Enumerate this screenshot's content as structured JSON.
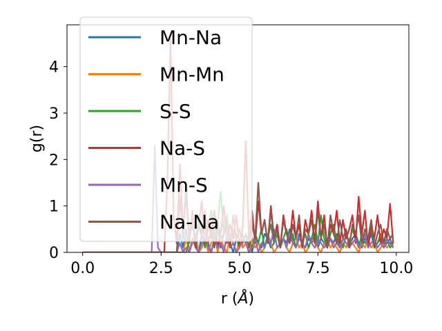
{
  "chart_data": {
    "type": "line",
    "title": "",
    "xlabel": "r (",
    "xlabel_unit": "Å",
    "xlabel_close": ")",
    "ylabel": "g(r)",
    "xlim": [
      -0.5,
      10.4
    ],
    "ylim": [
      0,
      4.9
    ],
    "xticks": [
      0.0,
      2.5,
      5.0,
      7.5,
      10.0
    ],
    "xtick_labels": [
      "0.0",
      "2.5",
      "5.0",
      "7.5",
      "10.0"
    ],
    "yticks": [
      0,
      1,
      2,
      3,
      4
    ],
    "ytick_labels": [
      "0",
      "1",
      "2",
      "3",
      "4"
    ],
    "grid": false,
    "legend_position": "upper-left",
    "series": [
      {
        "name": "Mn-Na",
        "color": "#1f77b4",
        "x": [
          0.0,
          3.0,
          3.1,
          3.2,
          3.3,
          3.4,
          3.5,
          3.6,
          3.7,
          3.8,
          3.9,
          4.0,
          4.1,
          4.2,
          4.3,
          4.4,
          4.5,
          4.6,
          4.7,
          4.8,
          4.9,
          5.0,
          5.1,
          5.2,
          5.3,
          5.4,
          5.5,
          5.6,
          5.7,
          5.8,
          5.9,
          6.0,
          6.1,
          6.2,
          6.3,
          6.4,
          6.5,
          6.6,
          6.7,
          6.8,
          6.9,
          7.0,
          7.1,
          7.2,
          7.3,
          7.4,
          7.5,
          7.6,
          7.7,
          7.8,
          7.9,
          8.0,
          8.1,
          8.2,
          8.3,
          8.4,
          8.5,
          8.6,
          8.7,
          8.8,
          8.9,
          9.0,
          9.1,
          9.2,
          9.3,
          9.4,
          9.5,
          9.6,
          9.7,
          9.8,
          9.9
        ],
        "values": [
          0,
          0,
          0.4,
          0.1,
          0.5,
          0,
          0.3,
          0.2,
          0,
          0.4,
          0.6,
          0.2,
          0,
          0.3,
          0.5,
          0.1,
          0.4,
          0.7,
          0.2,
          0,
          0.3,
          0.5,
          0.1,
          0.2,
          0.4,
          0,
          0.3,
          0.2,
          0.1,
          0.4,
          0.3,
          0.1,
          0.2,
          0.4,
          0.1,
          0.3,
          0.2,
          0.5,
          0.3,
          0.1,
          0.4,
          0.2,
          0.1,
          0.3,
          0.2,
          0.4,
          0.1,
          0.3,
          0.2,
          0.1,
          0.3,
          0.2,
          0.4,
          0.1,
          0.3,
          0.2,
          0.1,
          0.3,
          0.4,
          0.2,
          0.1,
          0.3,
          0.2,
          0.4,
          0.1,
          0.2,
          0.3,
          0.1,
          0.2,
          0.3,
          0.1
        ]
      },
      {
        "name": "Mn-Mn",
        "color": "#ff7f0e",
        "x": [
          0.0,
          3.2,
          3.3,
          3.4,
          3.5,
          3.6,
          3.7,
          3.8,
          3.9,
          4.0,
          4.1,
          4.2,
          4.3,
          4.4,
          4.5,
          4.6,
          4.7,
          4.8,
          4.9,
          5.0,
          5.1,
          5.2,
          5.3,
          5.4,
          5.5,
          5.6,
          5.7,
          5.8,
          5.9,
          6.0,
          6.1,
          6.2,
          6.3,
          6.4,
          6.5,
          6.6,
          6.7,
          6.8,
          6.9,
          7.0,
          7.1,
          7.2,
          7.3,
          7.4,
          7.5,
          7.6,
          7.7,
          7.8,
          7.9,
          8.0,
          8.1,
          8.2,
          8.3,
          8.4,
          8.5,
          8.6,
          8.7,
          8.8,
          8.9,
          9.0,
          9.1,
          9.2,
          9.3,
          9.4,
          9.5,
          9.6,
          9.7,
          9.8,
          9.9
        ],
        "values": [
          0,
          0,
          0.3,
          0,
          0.2,
          0.4,
          0,
          0.1,
          0.3,
          0,
          0.2,
          0.5,
          0,
          0.3,
          0.1,
          0,
          0.4,
          0.2,
          0,
          0.3,
          0.1,
          0.2,
          0,
          0.3,
          0.1,
          0.2,
          0,
          0.1,
          0.3,
          0.2,
          0,
          0.1,
          0.2,
          0.3,
          0.1,
          0,
          0.2,
          0.3,
          0.1,
          0.2,
          0,
          0.1,
          0.3,
          0.2,
          0.1,
          0,
          0.2,
          0.3,
          0.1,
          0.2,
          0.1,
          0,
          0.2,
          0.1,
          0.3,
          0.2,
          0.1,
          0,
          0.2,
          0.1,
          0.3,
          0.1,
          0.2,
          0,
          0.1,
          0.2,
          0.1,
          0.2,
          0.1
        ]
      },
      {
        "name": "S-S",
        "color": "#2ca02c",
        "x": [
          0.0,
          3.3,
          3.4,
          3.5,
          3.6,
          3.7,
          3.8,
          3.9,
          4.0,
          4.1,
          4.2,
          4.3,
          4.4,
          4.5,
          4.6,
          4.7,
          4.8,
          4.9,
          5.0,
          5.1,
          5.2,
          5.3,
          5.4,
          5.5,
          5.6,
          5.7,
          5.8,
          5.9,
          6.0,
          6.1,
          6.2,
          6.3,
          6.4,
          6.5,
          6.6,
          6.7,
          6.8,
          6.9,
          7.0,
          7.1,
          7.2,
          7.3,
          7.4,
          7.5,
          7.6,
          7.7,
          7.8,
          7.9,
          8.0,
          8.1,
          8.2,
          8.3,
          8.4,
          8.5,
          8.6,
          8.7,
          8.8,
          8.9,
          9.0,
          9.1,
          9.2,
          9.3,
          9.4,
          9.5,
          9.6,
          9.7,
          9.8,
          9.9
        ],
        "values": [
          0,
          0,
          0.3,
          0.6,
          0.2,
          0.8,
          0.4,
          0.1,
          0.5,
          0.9,
          0.3,
          0.6,
          1.3,
          0.4,
          0.8,
          0.2,
          0.5,
          0.3,
          0.1,
          0.4,
          0.2,
          0.3,
          0.1,
          0.4,
          0.2,
          0.5,
          0.1,
          0.3,
          0.6,
          0.2,
          0.4,
          0.1,
          0.3,
          0.5,
          0.2,
          0.4,
          0.1,
          0.3,
          0.2,
          0.4,
          0.1,
          0.3,
          0.6,
          0.2,
          0.8,
          0.3,
          0.1,
          0.4,
          0.6,
          0.2,
          0.3,
          0.1,
          0.4,
          0.2,
          0.5,
          0.3,
          0.1,
          0.4,
          0.2,
          0.3,
          0.5,
          0.1,
          0.2,
          0.4,
          0.2,
          0.3,
          0.1,
          0.2
        ]
      },
      {
        "name": "Na-S",
        "color": "#d62728",
        "x": [
          0.0,
          2.6,
          2.7,
          2.8,
          2.9,
          3.0,
          3.1,
          3.2,
          3.3,
          3.4,
          3.5,
          3.6,
          3.7,
          3.8,
          3.9,
          4.0,
          4.1,
          4.2,
          4.3,
          4.4,
          4.5,
          4.6,
          4.7,
          4.8,
          4.9,
          5.0,
          5.1,
          5.2,
          5.3,
          5.4,
          5.5,
          5.6,
          5.7,
          5.8,
          5.9,
          6.0,
          6.1,
          6.2,
          6.3,
          6.4,
          6.5,
          6.6,
          6.7,
          6.8,
          6.9,
          7.0,
          7.1,
          7.2,
          7.3,
          7.4,
          7.5,
          7.6,
          7.7,
          7.8,
          7.9,
          8.0,
          8.1,
          8.2,
          8.3,
          8.4,
          8.5,
          8.6,
          8.7,
          8.8,
          8.9,
          9.0,
          9.1,
          9.2,
          9.3,
          9.4,
          9.5,
          9.6,
          9.7,
          9.8,
          9.9
        ],
        "values": [
          0,
          0,
          1.5,
          4.6,
          0.8,
          0.2,
          1.9,
          0.5,
          1.2,
          0.3,
          0.9,
          0.1,
          0.6,
          1.1,
          0.2,
          0.7,
          0.3,
          0.9,
          0.1,
          0.4,
          1.0,
          0.2,
          0.6,
          0.3,
          0.8,
          0.1,
          0.5,
          2.4,
          0.3,
          0.9,
          0.2,
          1.1,
          0.4,
          0.7,
          0.2,
          1.0,
          0.3,
          0.6,
          0.1,
          0.8,
          0.4,
          0.2,
          0.9,
          0.3,
          0.6,
          0.1,
          0.7,
          0.4,
          0.9,
          0.2,
          1.1,
          0.3,
          0.8,
          0.1,
          0.6,
          0.4,
          0.9,
          0.2,
          0.7,
          0.3,
          0.5,
          0.8,
          0.2,
          1.2,
          0.4,
          0.9,
          0.1,
          0.6,
          0.3,
          0.8,
          0.2,
          0.5,
          0.3,
          1.05,
          0.2
        ]
      },
      {
        "name": "Mn-S",
        "color": "#9467bd",
        "x": [
          0.0,
          2.2,
          2.3,
          2.4,
          2.5,
          2.6,
          2.7,
          2.8,
          2.9,
          3.0,
          3.1,
          3.2,
          3.3,
          3.4,
          3.5,
          3.6,
          3.7,
          3.8,
          3.9,
          4.0,
          4.1,
          4.2,
          4.3,
          4.4,
          4.5,
          4.6,
          4.7,
          4.8,
          4.9,
          5.0,
          5.1,
          5.2,
          5.3,
          5.4,
          5.5,
          5.6,
          5.7,
          5.8,
          5.9,
          6.0,
          6.1,
          6.2,
          6.3,
          6.4,
          6.5,
          6.6,
          6.7,
          6.8,
          6.9,
          7.0,
          7.1,
          7.2,
          7.3,
          7.4,
          7.5,
          7.6,
          7.7,
          7.8,
          7.9,
          8.0,
          8.1,
          8.2,
          8.3,
          8.4,
          8.5,
          8.6,
          8.7,
          8.8,
          8.9,
          9.0,
          9.1,
          9.2,
          9.3,
          9.4,
          9.5,
          9.6,
          9.7,
          9.8,
          9.9
        ],
        "values": [
          0,
          0,
          2.3,
          0.1,
          0,
          0,
          0,
          0,
          0,
          0,
          0.2,
          0,
          0.1,
          0,
          0.3,
          0.1,
          0,
          0.2,
          0.4,
          0.1,
          0,
          0.3,
          0.1,
          0.2,
          0,
          0.4,
          0.1,
          0.2,
          0,
          0.1,
          0.3,
          0.2,
          0,
          0.1,
          0.3,
          0,
          0.2,
          0.1,
          0.4,
          0.2,
          0.5,
          0.1,
          0.2,
          0.3,
          0.1,
          0.4,
          0.2,
          0.1,
          0.3,
          0.2,
          0.1,
          0.4,
          0.2,
          0.1,
          0.3,
          0.2,
          0.1,
          0.2,
          0.3,
          0.1,
          0.2,
          0.1,
          0.3,
          0.2,
          0.1,
          0.2,
          0.3,
          0.1,
          0.2,
          0.4,
          0.1,
          0.2,
          0.3,
          0.1,
          0.2,
          0.1,
          0.3,
          0.2,
          0.1
        ]
      },
      {
        "name": "Na-Na",
        "color": "#8c564b",
        "x": [
          0.0,
          3.0,
          3.1,
          3.2,
          3.3,
          3.4,
          3.5,
          3.6,
          3.7,
          3.8,
          3.9,
          4.0,
          4.1,
          4.2,
          4.3,
          4.4,
          4.5,
          4.6,
          4.7,
          4.8,
          4.9,
          5.0,
          5.1,
          5.2,
          5.3,
          5.4,
          5.5,
          5.6,
          5.7,
          5.8,
          5.9,
          6.0,
          6.1,
          6.2,
          6.3,
          6.4,
          6.5,
          6.6,
          6.7,
          6.8,
          6.9,
          7.0,
          7.1,
          7.2,
          7.3,
          7.4,
          7.5,
          7.6,
          7.7,
          7.8,
          7.9,
          8.0,
          8.1,
          8.2,
          8.3,
          8.4,
          8.5,
          8.6,
          8.7,
          8.8,
          8.9,
          9.0,
          9.1,
          9.2,
          9.3,
          9.4,
          9.5,
          9.6,
          9.7,
          9.8,
          9.9
        ],
        "values": [
          0,
          0,
          1.2,
          0.3,
          1.5,
          0.2,
          0.8,
          0.1,
          0.6,
          0.3,
          0.9,
          0.2,
          0.5,
          0.1,
          0.7,
          0.3,
          0.4,
          0.6,
          0.1,
          0.8,
          0.3,
          0.5,
          0.2,
          0.4,
          0.1,
          0.6,
          0.3,
          1.5,
          0.4,
          0.7,
          0.2,
          0.9,
          0.3,
          0.5,
          0.1,
          0.7,
          0.4,
          0.2,
          0.6,
          0.3,
          0.8,
          0.1,
          0.5,
          0.4,
          0.7,
          0.2,
          0.9,
          0.3,
          0.6,
          0.1,
          0.8,
          0.4,
          0.2,
          0.7,
          0.3,
          0.5,
          0.1,
          0.6,
          0.4,
          0.8,
          0.2,
          0.5,
          0.3,
          0.7,
          0.1,
          0.4,
          0.6,
          0.2,
          0.5,
          0.3,
          0.4
        ]
      }
    ]
  }
}
